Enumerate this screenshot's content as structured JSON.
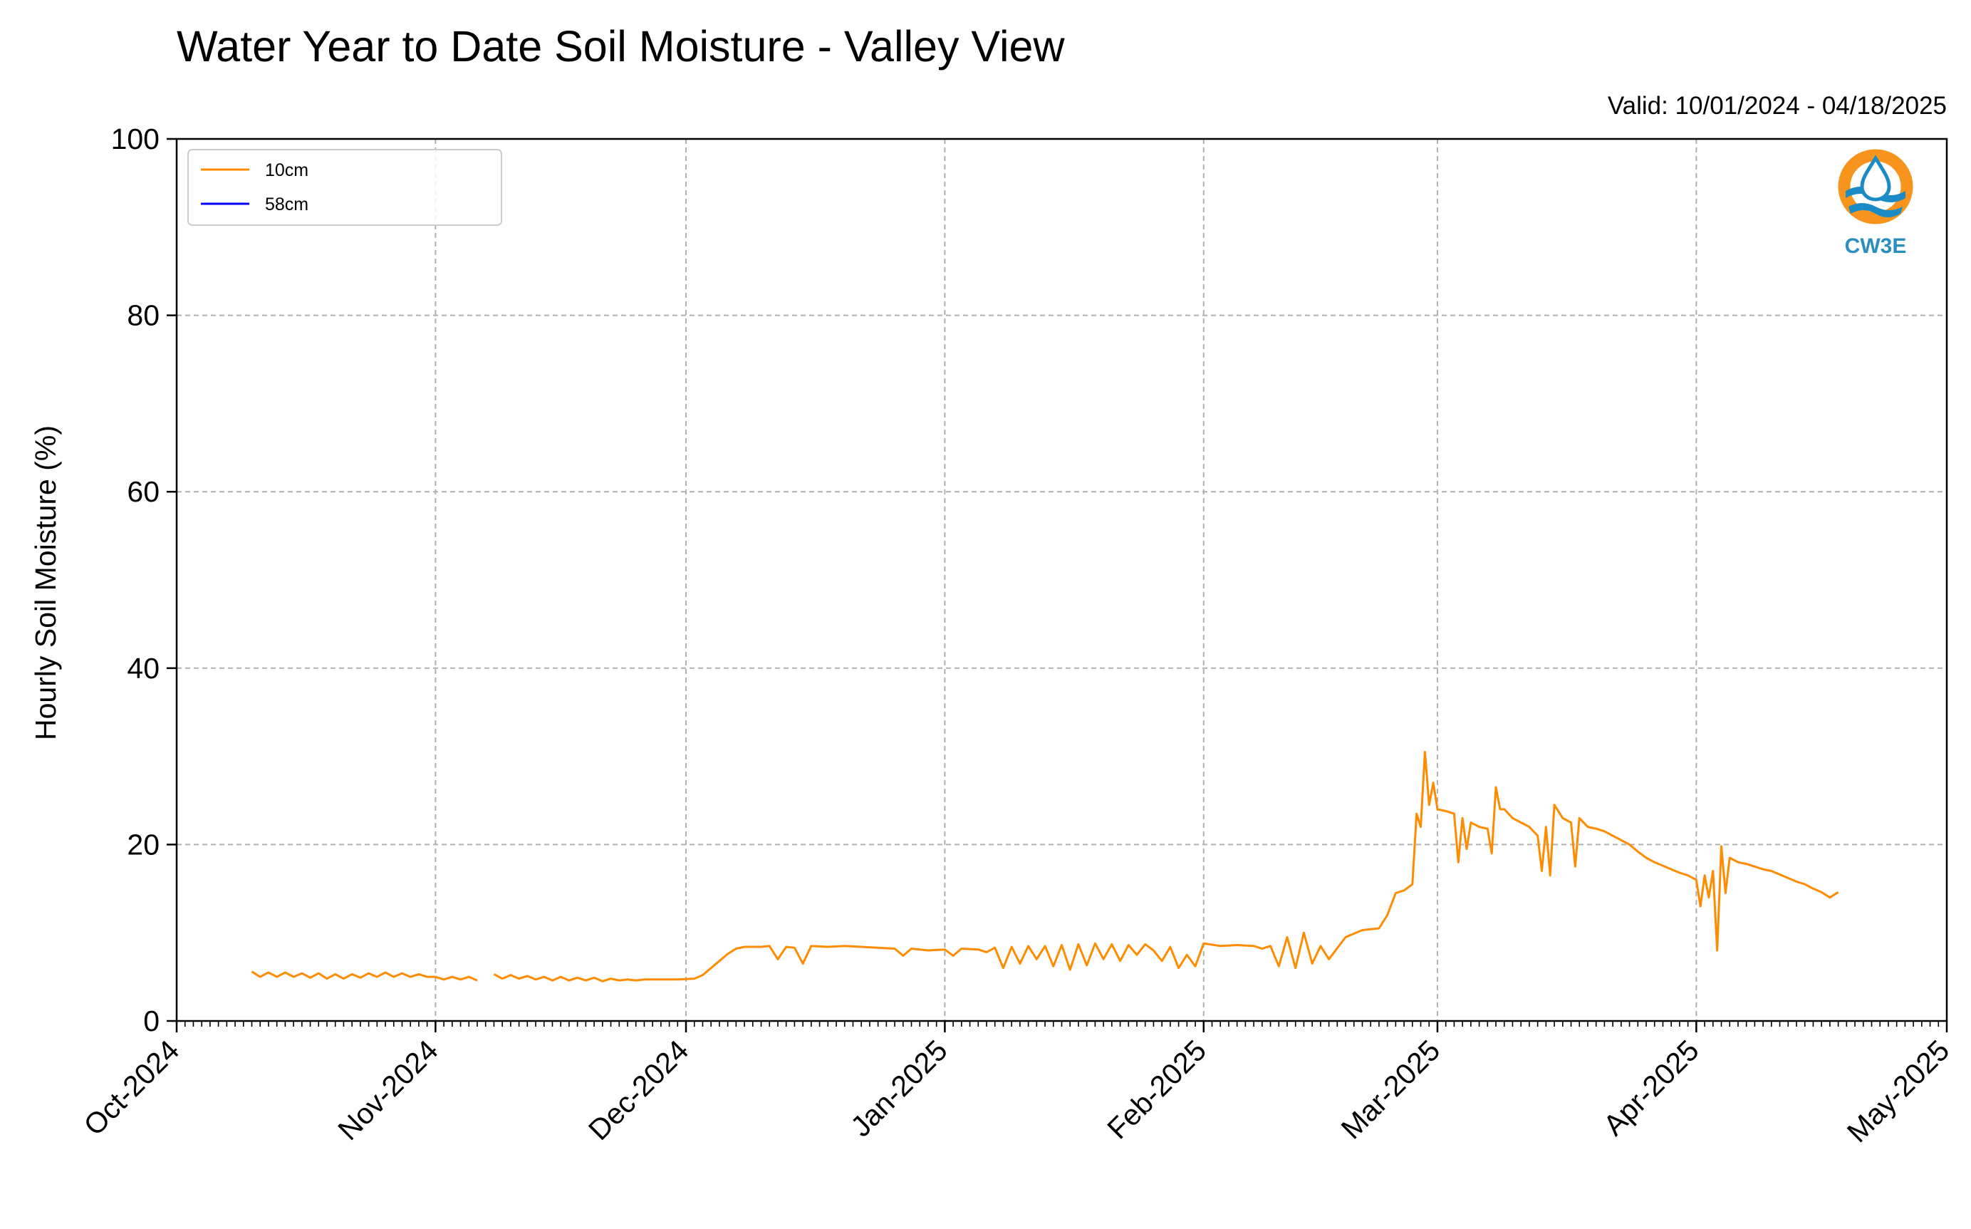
{
  "chart_data": {
    "type": "line",
    "title": "Water Year to Date Soil Moisture - Valley View",
    "subtitle": "Valid: 10/01/2024 - 04/18/2025",
    "ylabel": "Hourly Soil Moisture (%)",
    "xlabel": "",
    "ylim": [
      0,
      100
    ],
    "yticks": [
      0,
      20,
      40,
      60,
      80,
      100
    ],
    "xlim": [
      "2024-10-01",
      "2025-05-01"
    ],
    "xticks": [
      {
        "date": "2024-10-01",
        "label": "Oct-2024"
      },
      {
        "date": "2024-11-01",
        "label": "Nov-2024"
      },
      {
        "date": "2024-12-01",
        "label": "Dec-2024"
      },
      {
        "date": "2025-01-01",
        "label": "Jan-2025"
      },
      {
        "date": "2025-02-01",
        "label": "Feb-2025"
      },
      {
        "date": "2025-03-01",
        "label": "Mar-2025"
      },
      {
        "date": "2025-04-01",
        "label": "Apr-2025"
      },
      {
        "date": "2025-05-01",
        "label": "May-2025"
      }
    ],
    "grid": true,
    "legend_position": "top-left",
    "series": [
      {
        "name": "10cm",
        "color": "#ff8c00",
        "points": [
          [
            "2024-10-10",
            5.6
          ],
          [
            "2024-10-11",
            5.0
          ],
          [
            "2024-10-12",
            5.5
          ],
          [
            "2024-10-13",
            5.0
          ],
          [
            "2024-10-14",
            5.5
          ],
          [
            "2024-10-15",
            5.0
          ],
          [
            "2024-10-16",
            5.4
          ],
          [
            "2024-10-17",
            4.9
          ],
          [
            "2024-10-18",
            5.4
          ],
          [
            "2024-10-19",
            4.8
          ],
          [
            "2024-10-20",
            5.3
          ],
          [
            "2024-10-21",
            4.8
          ],
          [
            "2024-10-22",
            5.3
          ],
          [
            "2024-10-23",
            4.9
          ],
          [
            "2024-10-24",
            5.4
          ],
          [
            "2024-10-25",
            5.0
          ],
          [
            "2024-10-26",
            5.5
          ],
          [
            "2024-10-27",
            5.0
          ],
          [
            "2024-10-28",
            5.4
          ],
          [
            "2024-10-29",
            5.0
          ],
          [
            "2024-10-30",
            5.3
          ],
          [
            "2024-10-31",
            5.0
          ],
          [
            "2024-11-01",
            5.0
          ],
          [
            "2024-11-02",
            4.7
          ],
          [
            "2024-11-03",
            5.0
          ],
          [
            "2024-11-04",
            4.7
          ],
          [
            "2024-11-05",
            5.0
          ],
          [
            "2024-11-06",
            4.6
          ],
          [
            null,
            null
          ],
          [
            "2024-11-08",
            5.3
          ],
          [
            "2024-11-09",
            4.8
          ],
          [
            "2024-11-10",
            5.2
          ],
          [
            "2024-11-11",
            4.8
          ],
          [
            "2024-11-12",
            5.1
          ],
          [
            "2024-11-13",
            4.7
          ],
          [
            "2024-11-14",
            5.0
          ],
          [
            "2024-11-15",
            4.6
          ],
          [
            "2024-11-16",
            5.0
          ],
          [
            "2024-11-17",
            4.6
          ],
          [
            "2024-11-18",
            4.9
          ],
          [
            "2024-11-19",
            4.6
          ],
          [
            "2024-11-20",
            4.9
          ],
          [
            "2024-11-21",
            4.5
          ],
          [
            "2024-11-22",
            4.8
          ],
          [
            "2024-11-23",
            4.6
          ],
          [
            "2024-11-24",
            4.7
          ],
          [
            "2024-11-25",
            4.6
          ],
          [
            "2024-11-26",
            4.7
          ],
          [
            "2024-11-28",
            4.7
          ],
          [
            "2024-11-30",
            4.7
          ],
          [
            "2024-12-02",
            4.8
          ],
          [
            "2024-12-03",
            5.2
          ],
          [
            "2024-12-04",
            6.0
          ],
          [
            "2024-12-05",
            6.8
          ],
          [
            "2024-12-06",
            7.6
          ],
          [
            "2024-12-07",
            8.2
          ],
          [
            "2024-12-08",
            8.4
          ],
          [
            "2024-12-10",
            8.4
          ],
          [
            "2024-12-11",
            8.5
          ],
          [
            "2024-12-12",
            7.0
          ],
          [
            "2024-12-13",
            8.4
          ],
          [
            "2024-12-14",
            8.3
          ],
          [
            "2024-12-15",
            6.5
          ],
          [
            "2024-12-16",
            8.5
          ],
          [
            "2024-12-18",
            8.4
          ],
          [
            "2024-12-20",
            8.5
          ],
          [
            "2024-12-22",
            8.4
          ],
          [
            "2024-12-24",
            8.3
          ],
          [
            "2024-12-26",
            8.2
          ],
          [
            "2024-12-27",
            7.4
          ],
          [
            "2024-12-28",
            8.2
          ],
          [
            "2024-12-30",
            8.0
          ],
          [
            "2025-01-01",
            8.1
          ],
          [
            "2025-01-02",
            7.4
          ],
          [
            "2025-01-03",
            8.2
          ],
          [
            "2025-01-05",
            8.1
          ],
          [
            "2025-01-06",
            7.8
          ],
          [
            "2025-01-07",
            8.3
          ],
          [
            "2025-01-08",
            6.0
          ],
          [
            "2025-01-09",
            8.4
          ],
          [
            "2025-01-10",
            6.5
          ],
          [
            "2025-01-11",
            8.5
          ],
          [
            "2025-01-12",
            7.0
          ],
          [
            "2025-01-13",
            8.5
          ],
          [
            "2025-01-14",
            6.2
          ],
          [
            "2025-01-15",
            8.6
          ],
          [
            "2025-01-16",
            5.8
          ],
          [
            "2025-01-17",
            8.7
          ],
          [
            "2025-01-18",
            6.3
          ],
          [
            "2025-01-19",
            8.8
          ],
          [
            "2025-01-20",
            7.0
          ],
          [
            "2025-01-21",
            8.7
          ],
          [
            "2025-01-22",
            6.8
          ],
          [
            "2025-01-23",
            8.6
          ],
          [
            "2025-01-24",
            7.5
          ],
          [
            "2025-01-25",
            8.7
          ],
          [
            "2025-01-26",
            8.0
          ],
          [
            "2025-01-27",
            6.8
          ],
          [
            "2025-01-28",
            8.4
          ],
          [
            "2025-01-29",
            6.0
          ],
          [
            "2025-01-30",
            7.5
          ],
          [
            "2025-01-31",
            6.2
          ],
          [
            "2025-02-01",
            8.8
          ],
          [
            "2025-02-03",
            8.5
          ],
          [
            "2025-02-05",
            8.6
          ],
          [
            "2025-02-07",
            8.5
          ],
          [
            "2025-02-08",
            8.2
          ],
          [
            "2025-02-09",
            8.5
          ],
          [
            "2025-02-10",
            6.2
          ],
          [
            "2025-02-11",
            9.5
          ],
          [
            "2025-02-12",
            6.0
          ],
          [
            "2025-02-13",
            10.0
          ],
          [
            "2025-02-14",
            6.5
          ],
          [
            "2025-02-15",
            8.5
          ],
          [
            "2025-02-16",
            7.0
          ],
          [
            "2025-02-18",
            9.5
          ],
          [
            "2025-02-20",
            10.3
          ],
          [
            "2025-02-22",
            10.5
          ],
          [
            "2025-02-23",
            12.0
          ],
          [
            "2025-02-24",
            14.5
          ],
          [
            "2025-02-25",
            14.8
          ],
          [
            "2025-02-26",
            15.5
          ],
          [
            "2025-02-26T12",
            23.5
          ],
          [
            "2025-02-27",
            22.0
          ],
          [
            "2025-02-27T12",
            30.5
          ],
          [
            "2025-02-28",
            24.5
          ],
          [
            "2025-02-28T12",
            27.0
          ],
          [
            "2025-03-01",
            24.0
          ],
          [
            "2025-03-02",
            23.8
          ],
          [
            "2025-03-03",
            23.5
          ],
          [
            "2025-03-03T12",
            18.0
          ],
          [
            "2025-03-04",
            23.0
          ],
          [
            "2025-03-04T12",
            19.5
          ],
          [
            "2025-03-05",
            22.5
          ],
          [
            "2025-03-06",
            22.0
          ],
          [
            "2025-03-07",
            21.8
          ],
          [
            "2025-03-07T12",
            19.0
          ],
          [
            "2025-03-08",
            26.5
          ],
          [
            "2025-03-08T12",
            24.0
          ],
          [
            "2025-03-09",
            24.0
          ],
          [
            "2025-03-10",
            23.0
          ],
          [
            "2025-03-11",
            22.5
          ],
          [
            "2025-03-12",
            22.0
          ],
          [
            "2025-03-13",
            21.0
          ],
          [
            "2025-03-13T12",
            17.0
          ],
          [
            "2025-03-14",
            22.0
          ],
          [
            "2025-03-14T12",
            16.5
          ],
          [
            "2025-03-15",
            24.5
          ],
          [
            "2025-03-16",
            23.0
          ],
          [
            "2025-03-17",
            22.5
          ],
          [
            "2025-03-17T12",
            17.5
          ],
          [
            "2025-03-18",
            23.0
          ],
          [
            "2025-03-19",
            22.0
          ],
          [
            "2025-03-20",
            21.8
          ],
          [
            "2025-03-21",
            21.5
          ],
          [
            "2025-03-22",
            21.0
          ],
          [
            "2025-03-23",
            20.5
          ],
          [
            "2025-03-24",
            20.0
          ],
          [
            "2025-03-25",
            19.2
          ],
          [
            "2025-03-26",
            18.5
          ],
          [
            "2025-03-27",
            18.0
          ],
          [
            "2025-03-28",
            17.6
          ],
          [
            "2025-03-29",
            17.2
          ],
          [
            "2025-03-30",
            16.8
          ],
          [
            "2025-03-31",
            16.5
          ],
          [
            "2025-04-01",
            16.0
          ],
          [
            "2025-04-01T12",
            13.0
          ],
          [
            "2025-04-02",
            16.5
          ],
          [
            "2025-04-02T12",
            14.0
          ],
          [
            "2025-04-03",
            17.0
          ],
          [
            "2025-04-03T12",
            8.0
          ],
          [
            "2025-04-04",
            19.8
          ],
          [
            "2025-04-04T12",
            14.5
          ],
          [
            "2025-04-05",
            18.5
          ],
          [
            "2025-04-06",
            18.0
          ],
          [
            "2025-04-07",
            17.8
          ],
          [
            "2025-04-08",
            17.5
          ],
          [
            "2025-04-09",
            17.2
          ],
          [
            "2025-04-10",
            17.0
          ],
          [
            "2025-04-11",
            16.6
          ],
          [
            "2025-04-12",
            16.2
          ],
          [
            "2025-04-13",
            15.8
          ],
          [
            "2025-04-14",
            15.5
          ],
          [
            "2025-04-15",
            15.0
          ],
          [
            "2025-04-16",
            14.6
          ],
          [
            "2025-04-17",
            14.0
          ],
          [
            "2025-04-18",
            14.6
          ]
        ]
      },
      {
        "name": "58cm",
        "color": "#0000ff",
        "points": []
      }
    ]
  },
  "logo": {
    "text": "CW3E",
    "ring_color": "#f7941d",
    "wave_color": "#1a8bc4",
    "text_color": "#2a8fbd"
  }
}
